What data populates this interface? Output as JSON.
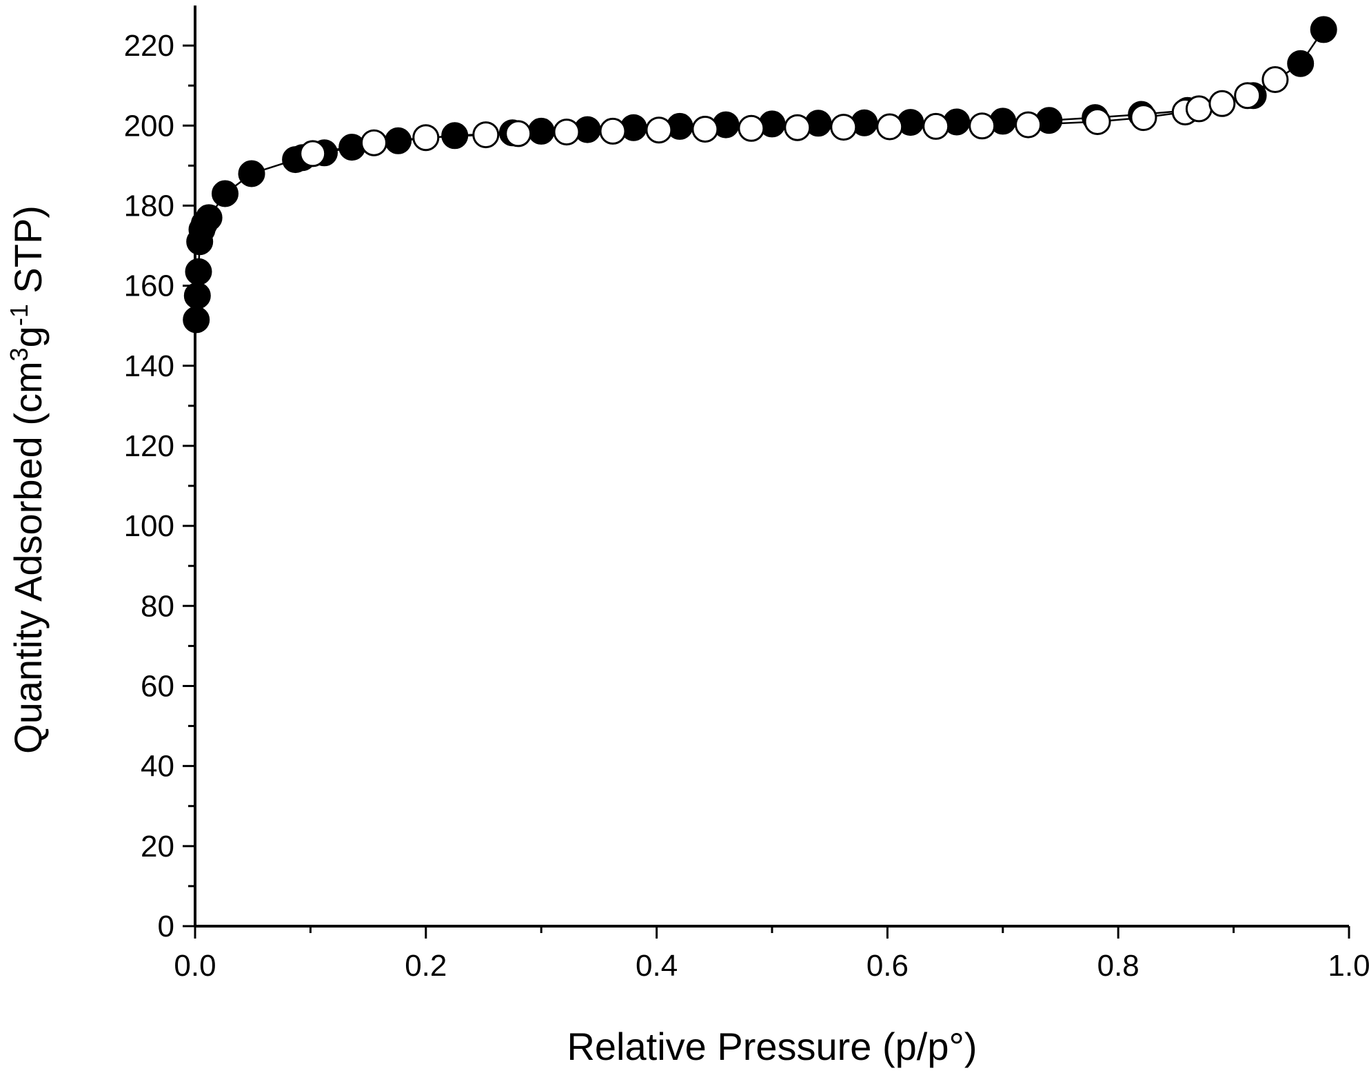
{
  "chart_data": {
    "type": "scatter",
    "xlabel": "Relative Pressure (p/p°)",
    "ylabel_parts": [
      "Quantity Adsorbed (cm",
      "3",
      "g",
      "-1",
      " STP)"
    ],
    "xlim": [
      0,
      1.0
    ],
    "ylim": [
      0,
      230
    ],
    "x_ticks": [
      "0.0",
      "0.2",
      "0.4",
      "0.6",
      "0.8",
      "1.0"
    ],
    "x_tick_values": [
      0,
      0.2,
      0.4,
      0.6,
      0.8,
      1.0
    ],
    "x_minor_step": 0.1,
    "y_ticks": [
      "0",
      "20",
      "40",
      "60",
      "80",
      "100",
      "120",
      "140",
      "160",
      "180",
      "200",
      "220"
    ],
    "y_tick_values": [
      0,
      20,
      40,
      60,
      80,
      100,
      120,
      140,
      160,
      180,
      200,
      220
    ],
    "y_minor_step": 10,
    "grid": false,
    "legend": "none",
    "series": [
      {
        "marker": "filled-circle",
        "color": "#000000",
        "fill": "#000000",
        "points": [
          [
            0.001,
            151.5
          ],
          [
            0.002,
            157.5
          ],
          [
            0.003,
            163.5
          ],
          [
            0.004,
            171
          ],
          [
            0.006,
            174
          ],
          [
            0.008,
            175.5
          ],
          [
            0.012,
            177
          ],
          [
            0.026,
            183
          ],
          [
            0.049,
            188
          ],
          [
            0.087,
            191.5
          ],
          [
            0.093,
            192
          ],
          [
            0.112,
            193.2
          ],
          [
            0.136,
            194.6
          ],
          [
            0.176,
            196.2
          ],
          [
            0.225,
            197.5
          ],
          [
            0.275,
            198.2
          ],
          [
            0.3,
            198.6
          ],
          [
            0.34,
            199
          ],
          [
            0.38,
            199.5
          ],
          [
            0.42,
            199.8
          ],
          [
            0.46,
            200.2
          ],
          [
            0.5,
            200.4
          ],
          [
            0.54,
            200.6
          ],
          [
            0.58,
            200.7
          ],
          [
            0.62,
            200.8
          ],
          [
            0.66,
            200.9
          ],
          [
            0.7,
            201.1
          ],
          [
            0.74,
            201.3
          ],
          [
            0.78,
            202
          ],
          [
            0.82,
            202.8
          ],
          [
            0.86,
            203.8
          ],
          [
            0.917,
            207.5
          ],
          [
            0.958,
            215.5
          ],
          [
            0.978,
            224
          ]
        ]
      },
      {
        "marker": "open-circle",
        "color": "#000000",
        "fill": "#ffffff",
        "points": [
          [
            0.102,
            193
          ],
          [
            0.155,
            195.7
          ],
          [
            0.2,
            197
          ],
          [
            0.252,
            197.7
          ],
          [
            0.28,
            198
          ],
          [
            0.322,
            198.4
          ],
          [
            0.362,
            198.6
          ],
          [
            0.402,
            198.9
          ],
          [
            0.442,
            199.1
          ],
          [
            0.482,
            199.3
          ],
          [
            0.522,
            199.5
          ],
          [
            0.562,
            199.6
          ],
          [
            0.602,
            199.7
          ],
          [
            0.642,
            199.8
          ],
          [
            0.682,
            199.9
          ],
          [
            0.722,
            200.2
          ],
          [
            0.782,
            201
          ],
          [
            0.822,
            202
          ],
          [
            0.858,
            203.4
          ],
          [
            0.87,
            204.2
          ],
          [
            0.89,
            205.5
          ],
          [
            0.912,
            207.5
          ],
          [
            0.936,
            211.5
          ]
        ]
      }
    ]
  }
}
